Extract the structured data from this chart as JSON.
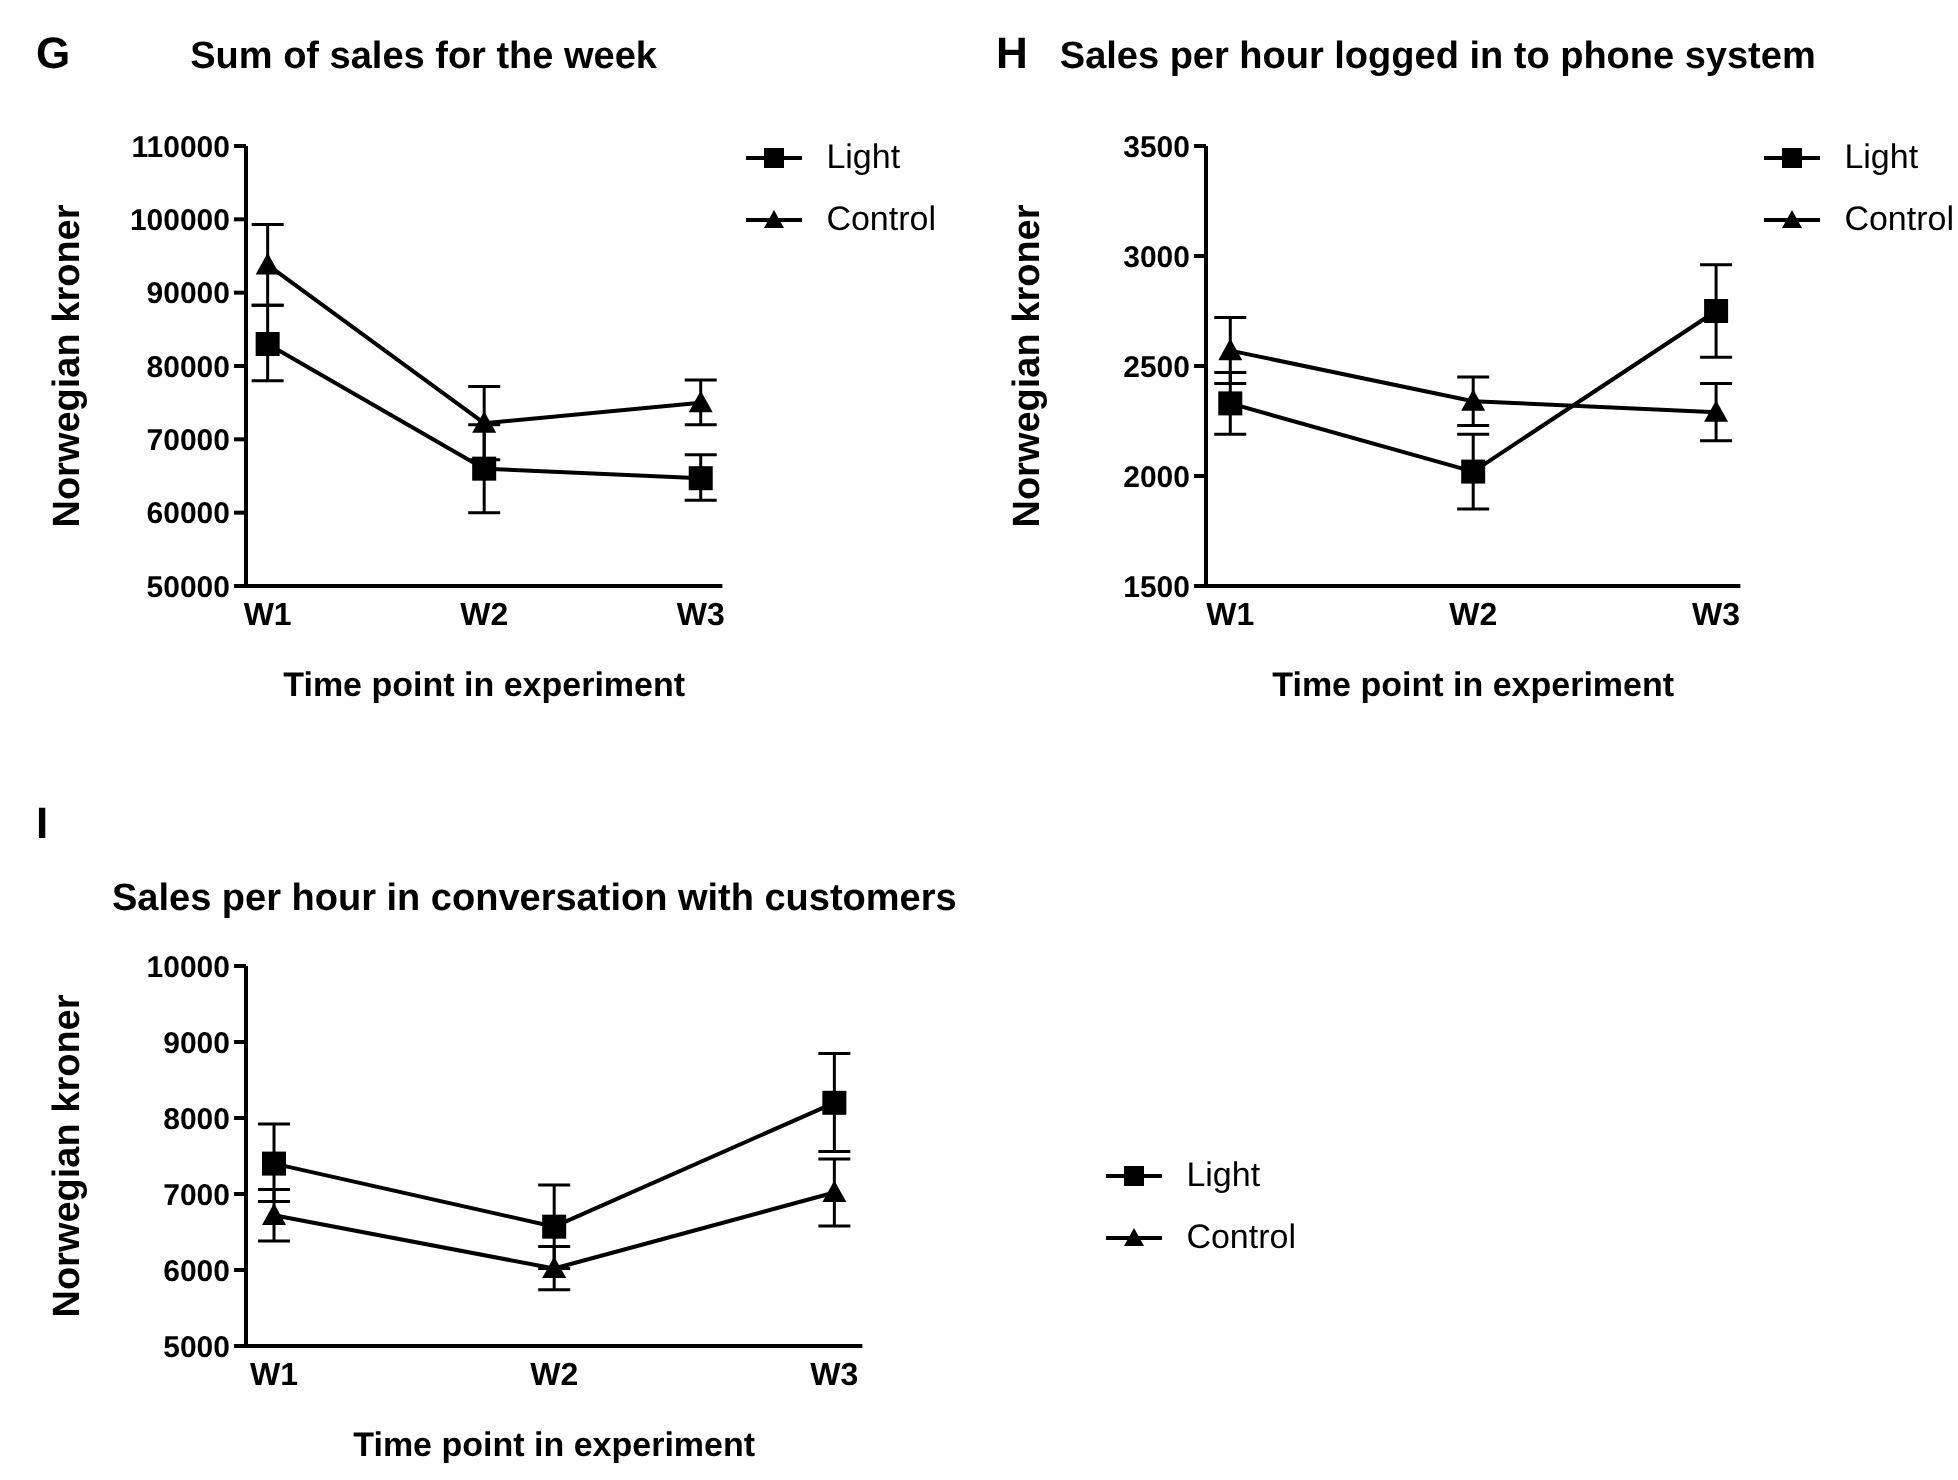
{
  "chart_data": [
    {
      "type": "line",
      "title": "Sum of sales for the week",
      "xlabel": "Time point in experiment",
      "ylabel": "Norwegian kroner",
      "annotations": [
        "G"
      ],
      "categories": [
        "W1",
        "W2",
        "W3"
      ],
      "ylim": [
        50000,
        110000
      ],
      "yticks": [
        50000,
        60000,
        70000,
        80000,
        90000,
        100000,
        110000
      ],
      "grid": false,
      "legend": "top right",
      "series": [
        {
          "name": "Light",
          "color": "#000000",
          "marker": "square",
          "values": [
            83000,
            66000,
            64700
          ],
          "errors": [
            [
              78000,
              88300
            ],
            [
              60000,
              72000
            ],
            [
              61700,
              67900
            ]
          ]
        },
        {
          "name": "Control",
          "color": "#000000",
          "marker": "triangle",
          "values": [
            93800,
            72200,
            75000
          ],
          "errors": [
            [
              88300,
              99300
            ],
            [
              67200,
              77200
            ],
            [
              72000,
              78100
            ]
          ]
        }
      ]
    },
    {
      "type": "line",
      "title": "Sales per hour logged in to phone system",
      "xlabel": "Time point in experiment",
      "ylabel": "Norwegian kroner",
      "annotations": [
        "H"
      ],
      "categories": [
        "W1",
        "W2",
        "W3"
      ],
      "ylim": [
        1500,
        3500
      ],
      "yticks": [
        1500,
        2000,
        2500,
        3000,
        3500
      ],
      "grid": false,
      "legend": "top right",
      "series": [
        {
          "name": "Light",
          "color": "#000000",
          "marker": "square",
          "values": [
            2330,
            2020,
            2750
          ],
          "errors": [
            [
              2190,
              2470
            ],
            [
              1850,
              2190
            ],
            [
              2540,
              2960
            ]
          ]
        },
        {
          "name": "Control",
          "color": "#000000",
          "marker": "triangle",
          "values": [
            2570,
            2340,
            2290
          ],
          "errors": [
            [
              2420,
              2720
            ],
            [
              2230,
              2450
            ],
            [
              2160,
              2420
            ]
          ]
        }
      ]
    },
    {
      "type": "line",
      "title": "Sales per hour in conversation with customers",
      "xlabel": "Time point in experiment",
      "ylabel": "Norwegian kroner",
      "annotations": [
        "I"
      ],
      "categories": [
        "W1",
        "W2",
        "W3"
      ],
      "ylim": [
        5000,
        10000
      ],
      "yticks": [
        5000,
        6000,
        7000,
        8000,
        9000,
        10000
      ],
      "grid": false,
      "legend": "right",
      "series": [
        {
          "name": "Light",
          "color": "#000000",
          "marker": "square",
          "values": [
            7400,
            6570,
            8200
          ],
          "errors": [
            [
              6900,
              7920
            ],
            [
              6020,
              7120
            ],
            [
              7560,
              8850
            ]
          ]
        },
        {
          "name": "Control",
          "color": "#000000",
          "marker": "triangle",
          "values": [
            6720,
            6020,
            7020
          ],
          "errors": [
            [
              6380,
              7060
            ],
            [
              5740,
              6310
            ],
            [
              6580,
              7460
            ]
          ]
        }
      ]
    }
  ]
}
